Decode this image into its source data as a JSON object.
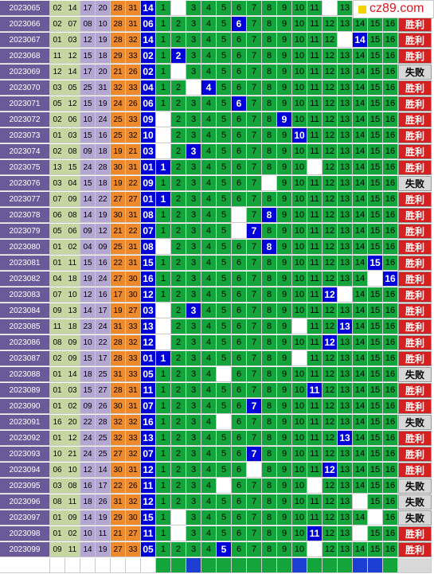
{
  "logo": {
    "text": "cz89.com",
    "icon": "yellow-square-icon"
  },
  "labels": {
    "win": "胜利",
    "lose": "失败"
  },
  "colors": {
    "win": "#d42020",
    "lose": "#d8d8d8",
    "hit": "#0000d8",
    "grid": "#13a53b"
  },
  "rows": [
    {
      "issue": "2023065",
      "reds": [
        "02",
        "14",
        "17",
        "20",
        "28",
        "31"
      ],
      "blue": "14",
      "hit": null,
      "empty": [
        2,
        12
      ],
      "result": ""
    },
    {
      "issue": "2023066",
      "reds": [
        "02",
        "07",
        "08",
        "10",
        "28",
        "31"
      ],
      "blue": "06",
      "hit": 6,
      "empty": [],
      "result": "win"
    },
    {
      "issue": "2023067",
      "reds": [
        "01",
        "03",
        "12",
        "19",
        "28",
        "32"
      ],
      "blue": "14",
      "hit": 14,
      "empty": [
        13
      ],
      "result": "win"
    },
    {
      "issue": "2023068",
      "reds": [
        "11",
        "12",
        "15",
        "18",
        "29",
        "33"
      ],
      "blue": "02",
      "hit": 2,
      "empty": [],
      "result": "win"
    },
    {
      "issue": "2023069",
      "reds": [
        "12",
        "14",
        "17",
        "20",
        "21",
        "26"
      ],
      "blue": "02",
      "hit": null,
      "empty": [
        2
      ],
      "result": "lose"
    },
    {
      "issue": "2023070",
      "reds": [
        "03",
        "05",
        "25",
        "31",
        "32",
        "33"
      ],
      "blue": "04",
      "hit": 4,
      "empty": [
        3
      ],
      "result": "win"
    },
    {
      "issue": "2023071",
      "reds": [
        "05",
        "12",
        "15",
        "19",
        "24",
        "26"
      ],
      "blue": "06",
      "hit": 6,
      "empty": [],
      "result": "win"
    },
    {
      "issue": "2023072",
      "reds": [
        "02",
        "06",
        "10",
        "24",
        "25",
        "33"
      ],
      "blue": "09",
      "hit": 9,
      "empty": [
        1
      ],
      "result": "win"
    },
    {
      "issue": "2023073",
      "reds": [
        "01",
        "03",
        "15",
        "16",
        "25",
        "32"
      ],
      "blue": "10",
      "hit": 10,
      "empty": [
        1
      ],
      "result": "win"
    },
    {
      "issue": "2023074",
      "reds": [
        "02",
        "08",
        "09",
        "18",
        "19",
        "21"
      ],
      "blue": "03",
      "hit": 3,
      "empty": [
        1
      ],
      "result": "win"
    },
    {
      "issue": "2023075",
      "reds": [
        "13",
        "15",
        "24",
        "28",
        "30",
        "31"
      ],
      "blue": "01",
      "hit": 1,
      "empty": [
        11
      ],
      "result": "win"
    },
    {
      "issue": "2023076",
      "reds": [
        "03",
        "04",
        "15",
        "18",
        "19",
        "22"
      ],
      "blue": "09",
      "hit": null,
      "empty": [
        8
      ],
      "result": "lose"
    },
    {
      "issue": "2023077",
      "reds": [
        "07",
        "09",
        "14",
        "22",
        "27",
        "27"
      ],
      "blue": "01",
      "hit": 1,
      "empty": [],
      "result": "win"
    },
    {
      "issue": "2023078",
      "reds": [
        "06",
        "08",
        "14",
        "19",
        "30",
        "31"
      ],
      "blue": "08",
      "hit": 8,
      "empty": [
        6
      ],
      "result": "win"
    },
    {
      "issue": "2023079",
      "reds": [
        "05",
        "06",
        "09",
        "12",
        "21",
        "22"
      ],
      "blue": "07",
      "hit": 7,
      "empty": [
        6
      ],
      "result": "win"
    },
    {
      "issue": "2023080",
      "reds": [
        "01",
        "02",
        "04",
        "09",
        "25",
        "31"
      ],
      "blue": "08",
      "hit": 8,
      "empty": [
        1
      ],
      "result": "win"
    },
    {
      "issue": "2023081",
      "reds": [
        "01",
        "11",
        "15",
        "16",
        "22",
        "31"
      ],
      "blue": "15",
      "hit": 15,
      "empty": [],
      "result": "win"
    },
    {
      "issue": "2023082",
      "reds": [
        "04",
        "18",
        "19",
        "24",
        "27",
        "30"
      ],
      "blue": "16",
      "hit": 16,
      "empty": [
        15
      ],
      "result": "win"
    },
    {
      "issue": "2023083",
      "reds": [
        "07",
        "10",
        "12",
        "16",
        "17",
        "30"
      ],
      "blue": "12",
      "hit": 12,
      "empty": [
        13
      ],
      "result": "win"
    },
    {
      "issue": "2023084",
      "reds": [
        "09",
        "13",
        "14",
        "17",
        "19",
        "27"
      ],
      "blue": "03",
      "hit": 3,
      "empty": [
        1
      ],
      "result": "win"
    },
    {
      "issue": "2023085",
      "reds": [
        "11",
        "18",
        "23",
        "24",
        "31",
        "33"
      ],
      "blue": "13",
      "hit": 13,
      "empty": [
        1,
        10
      ],
      "result": "win"
    },
    {
      "issue": "2023086",
      "reds": [
        "08",
        "09",
        "10",
        "22",
        "28",
        "32"
      ],
      "blue": "12",
      "hit": 12,
      "empty": [
        1
      ],
      "result": "win"
    },
    {
      "issue": "2023087",
      "reds": [
        "02",
        "09",
        "15",
        "17",
        "28",
        "33"
      ],
      "blue": "01",
      "hit": 1,
      "empty": [
        10
      ],
      "result": "win"
    },
    {
      "issue": "2023088",
      "reds": [
        "01",
        "14",
        "18",
        "25",
        "31",
        "33"
      ],
      "blue": "05",
      "hit": null,
      "empty": [
        5
      ],
      "result": "lose"
    },
    {
      "issue": "2023089",
      "reds": [
        "01",
        "03",
        "15",
        "27",
        "28",
        "31"
      ],
      "blue": "11",
      "hit": 11,
      "empty": [],
      "result": "win"
    },
    {
      "issue": "2023090",
      "reds": [
        "01",
        "02",
        "09",
        "26",
        "30",
        "31"
      ],
      "blue": "07",
      "hit": 7,
      "empty": [],
      "result": "win"
    },
    {
      "issue": "2023091",
      "reds": [
        "16",
        "20",
        "22",
        "28",
        "32",
        "32"
      ],
      "blue": "16",
      "hit": null,
      "empty": [
        5
      ],
      "result": "lose"
    },
    {
      "issue": "2023092",
      "reds": [
        "01",
        "12",
        "24",
        "25",
        "32",
        "33"
      ],
      "blue": "13",
      "hit": 13,
      "empty": [],
      "result": "win"
    },
    {
      "issue": "2023093",
      "reds": [
        "10",
        "21",
        "24",
        "25",
        "27",
        "32"
      ],
      "blue": "07",
      "hit": 7,
      "empty": [],
      "result": "win"
    },
    {
      "issue": "2023094",
      "reds": [
        "06",
        "10",
        "12",
        "14",
        "30",
        "31"
      ],
      "blue": "12",
      "hit": 12,
      "empty": [
        7
      ],
      "result": "win"
    },
    {
      "issue": "2023095",
      "reds": [
        "03",
        "08",
        "16",
        "17",
        "22",
        "26"
      ],
      "blue": "11",
      "hit": null,
      "empty": [
        5,
        11
      ],
      "result": "lose"
    },
    {
      "issue": "2023096",
      "reds": [
        "08",
        "11",
        "18",
        "26",
        "31",
        "32"
      ],
      "blue": "12",
      "hit": null,
      "empty": [
        14
      ],
      "result": "lose"
    },
    {
      "issue": "2023097",
      "reds": [
        "01",
        "09",
        "14",
        "19",
        "29",
        "30"
      ],
      "blue": "15",
      "hit": null,
      "empty": [
        2,
        15
      ],
      "result": "lose"
    },
    {
      "issue": "2023098",
      "reds": [
        "01",
        "02",
        "10",
        "11",
        "21",
        "27"
      ],
      "blue": "11",
      "hit": 11,
      "empty": [
        2,
        14
      ],
      "result": "win"
    },
    {
      "issue": "2023099",
      "reds": [
        "09",
        "11",
        "14",
        "19",
        "27",
        "33"
      ],
      "blue": "05",
      "hit": 5,
      "empty": [
        11
      ],
      "result": "win"
    }
  ],
  "footer": {
    "blue_marks": [
      3,
      10,
      14,
      15
    ]
  }
}
